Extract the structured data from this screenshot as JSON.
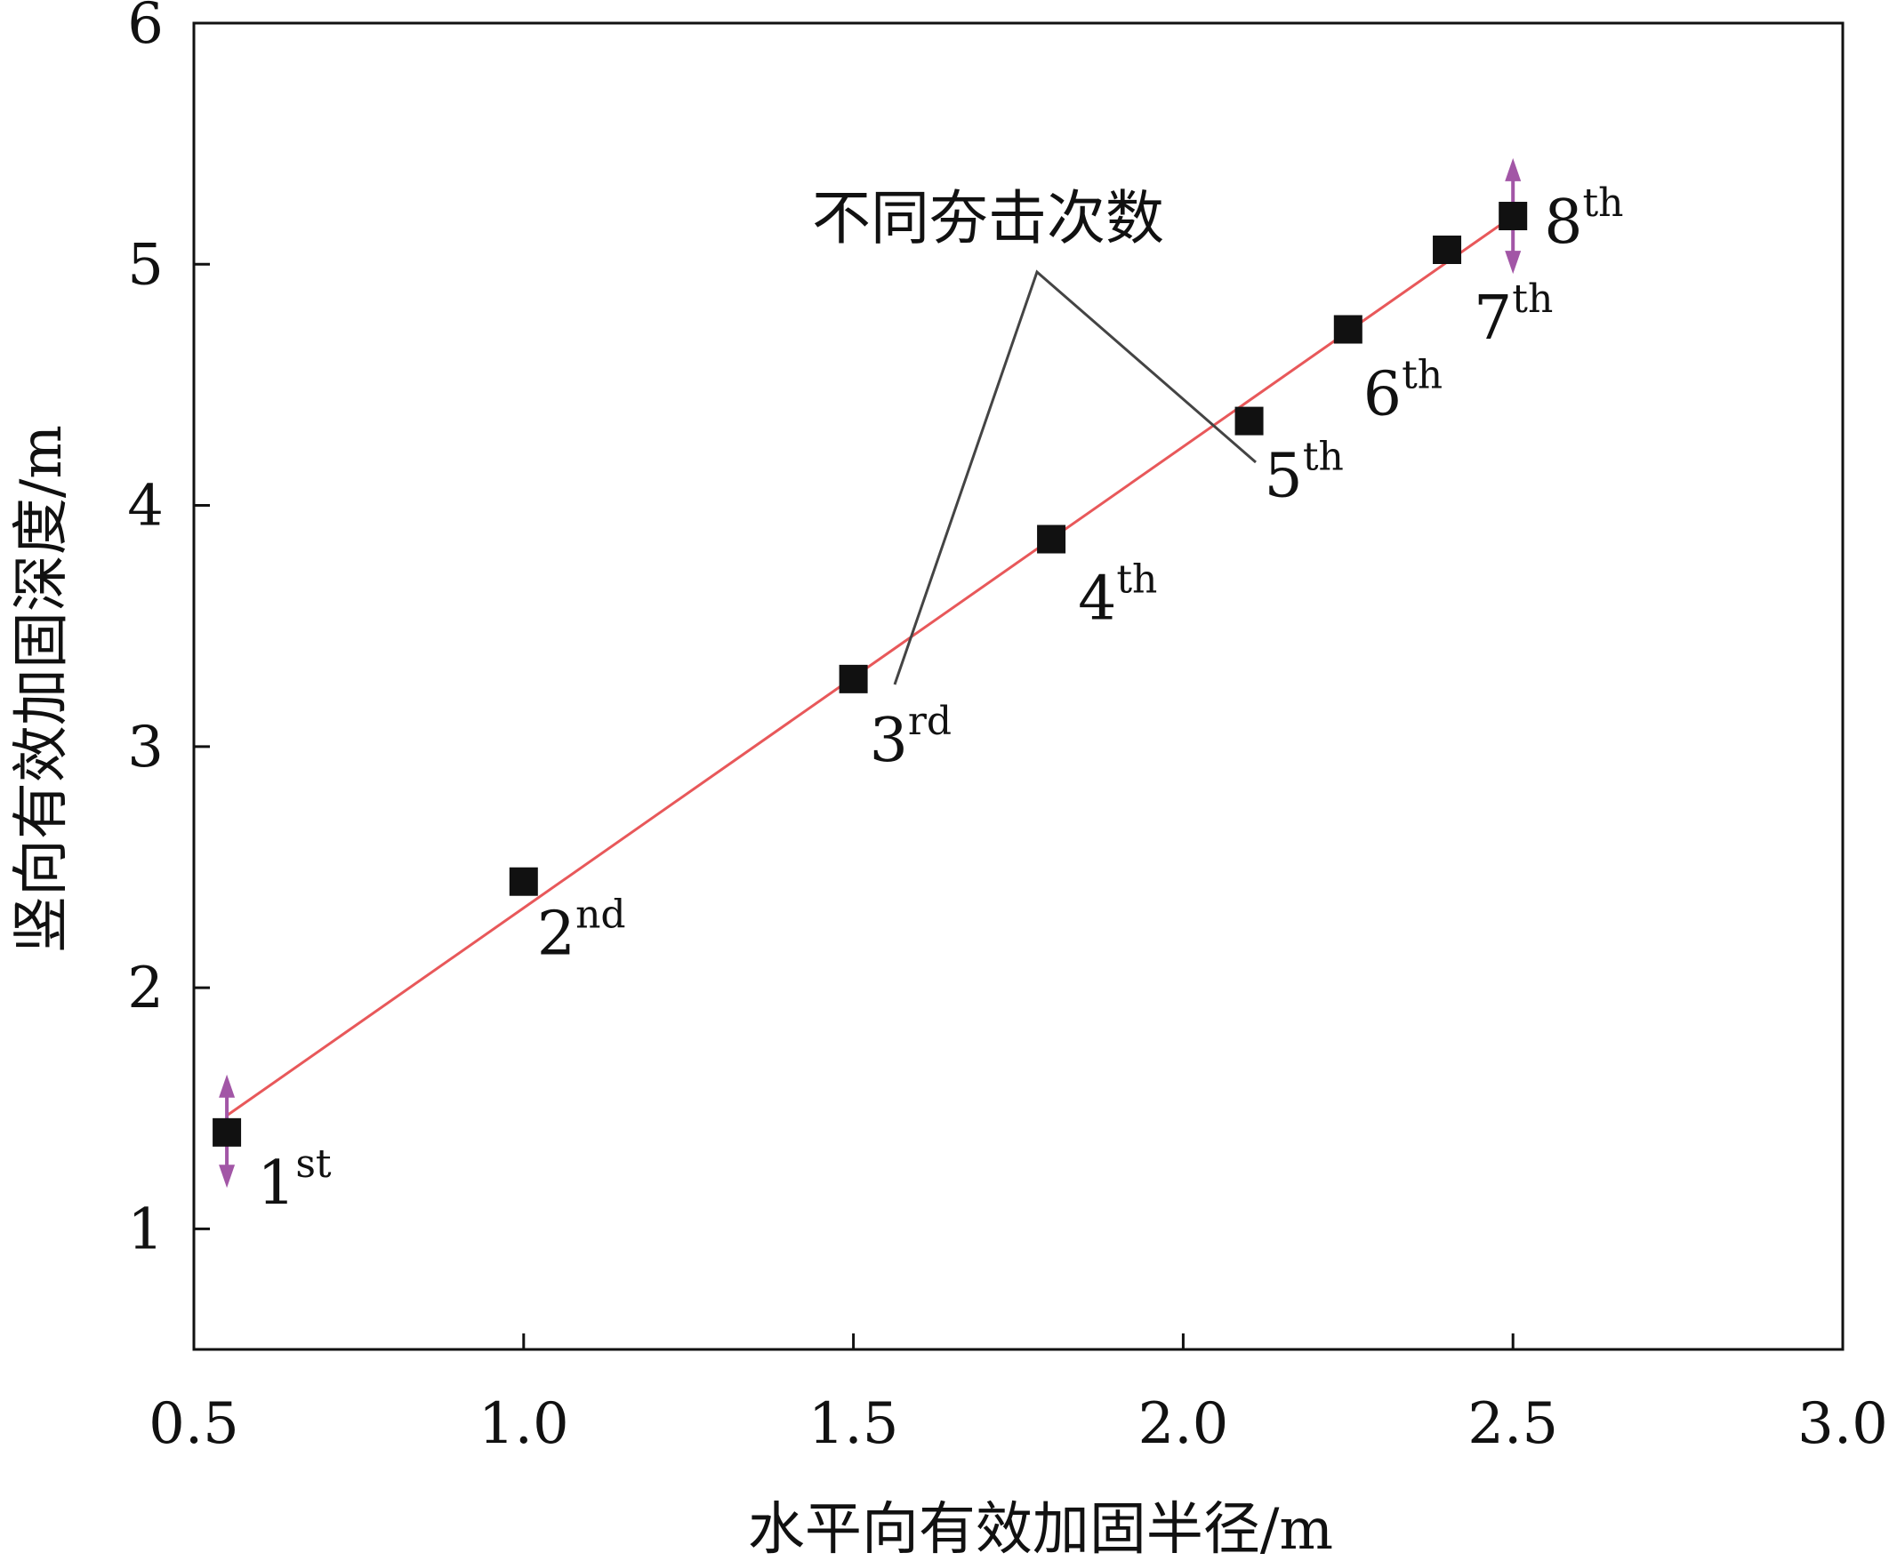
{
  "chart_data": {
    "type": "scatter",
    "xlabel": "水平向有效加固半径/m",
    "ylabel": "竖向有效加固深度/m",
    "xlim": [
      0.5,
      3.0
    ],
    "ylim": [
      0.5,
      6
    ],
    "xticks": [
      "0.5",
      "1.0",
      "1.5",
      "2.0",
      "2.5",
      "3.0"
    ],
    "yticks": [
      "1",
      "2",
      "3",
      "4",
      "5",
      "6"
    ],
    "grid": false,
    "series": [
      {
        "marker": "square",
        "color": "#111111",
        "points": [
          {
            "x": 0.55,
            "y": 1.4,
            "label": "1",
            "sup": "st"
          },
          {
            "x": 1.0,
            "y": 2.44,
            "label": "2",
            "sup": "nd"
          },
          {
            "x": 1.5,
            "y": 3.28,
            "label": "3",
            "sup": "rd"
          },
          {
            "x": 1.8,
            "y": 3.86,
            "label": "4",
            "sup": "th"
          },
          {
            "x": 2.1,
            "y": 4.35,
            "label": "5",
            "sup": "th"
          },
          {
            "x": 2.25,
            "y": 4.73,
            "label": "6",
            "sup": "th"
          },
          {
            "x": 2.4,
            "y": 5.06,
            "label": "7",
            "sup": "th"
          },
          {
            "x": 2.5,
            "y": 5.2,
            "label": "8",
            "sup": "th"
          }
        ]
      }
    ],
    "fit_line": {
      "color": "#e8585a",
      "from": {
        "x": 0.55,
        "y": 1.47
      },
      "to": {
        "x": 2.5,
        "y": 5.2
      }
    },
    "range_arrows": {
      "color": "#a256a6",
      "items": [
        {
          "x": 0.55,
          "y_min": 1.17,
          "y_max": 1.64
        },
        {
          "x": 2.5,
          "y_min": 4.96,
          "y_max": 5.44
        }
      ]
    },
    "annotation": {
      "text": "不同夯击次数",
      "color": "#444444"
    }
  }
}
